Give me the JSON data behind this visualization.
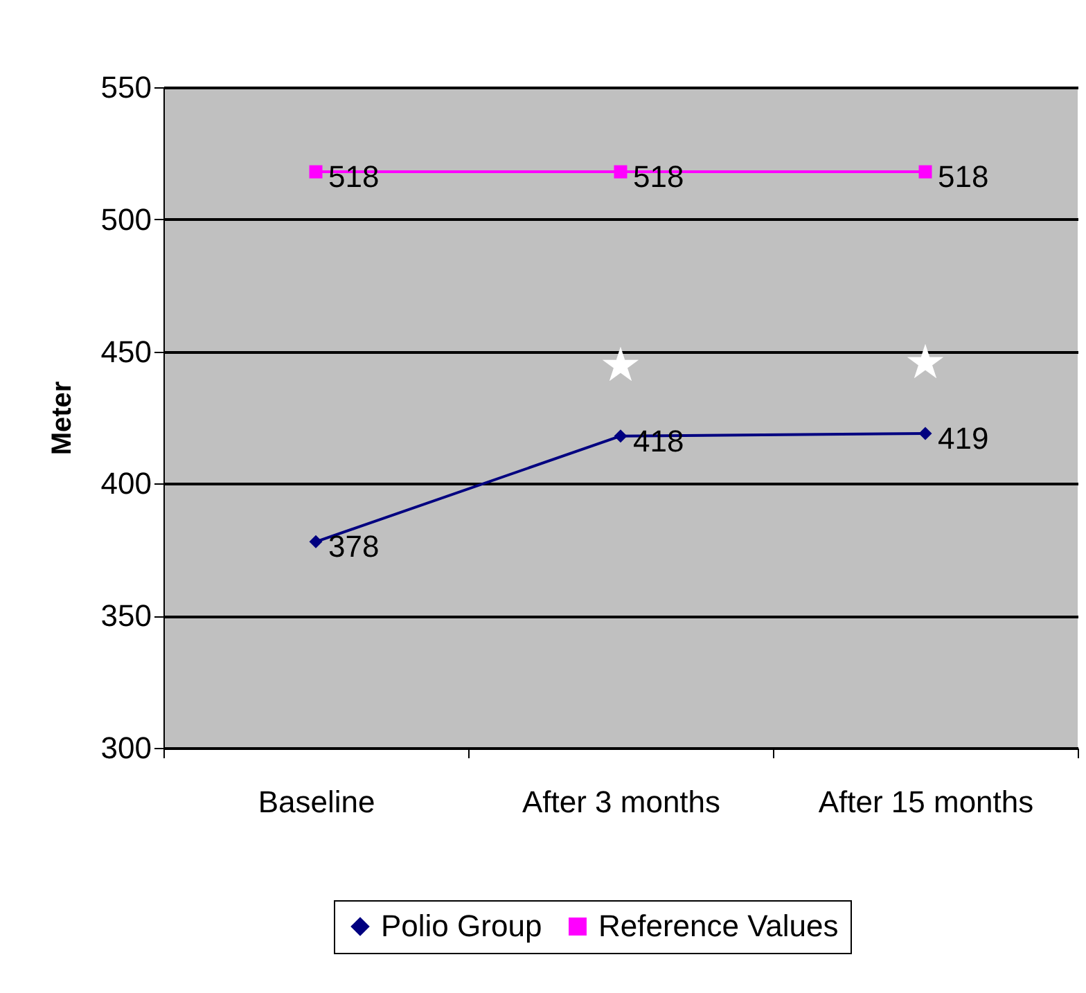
{
  "chart_data": {
    "type": "line",
    "ylabel": "Meter",
    "categories": [
      "Baseline",
      "After 3 months",
      "After 15 months"
    ],
    "series": [
      {
        "name": "Polio Group",
        "color": "#000080",
        "marker": "diamond",
        "values": [
          378,
          418,
          419
        ]
      },
      {
        "name": "Reference Values",
        "color": "#ff00ff",
        "marker": "square",
        "values": [
          518,
          518,
          518
        ]
      }
    ],
    "ylim": [
      300,
      550
    ],
    "yticks": [
      300,
      350,
      400,
      450,
      500,
      550
    ],
    "grid": "y",
    "legend": "bottom",
    "data_labels": true,
    "annotations": [
      "★",
      "★"
    ]
  }
}
